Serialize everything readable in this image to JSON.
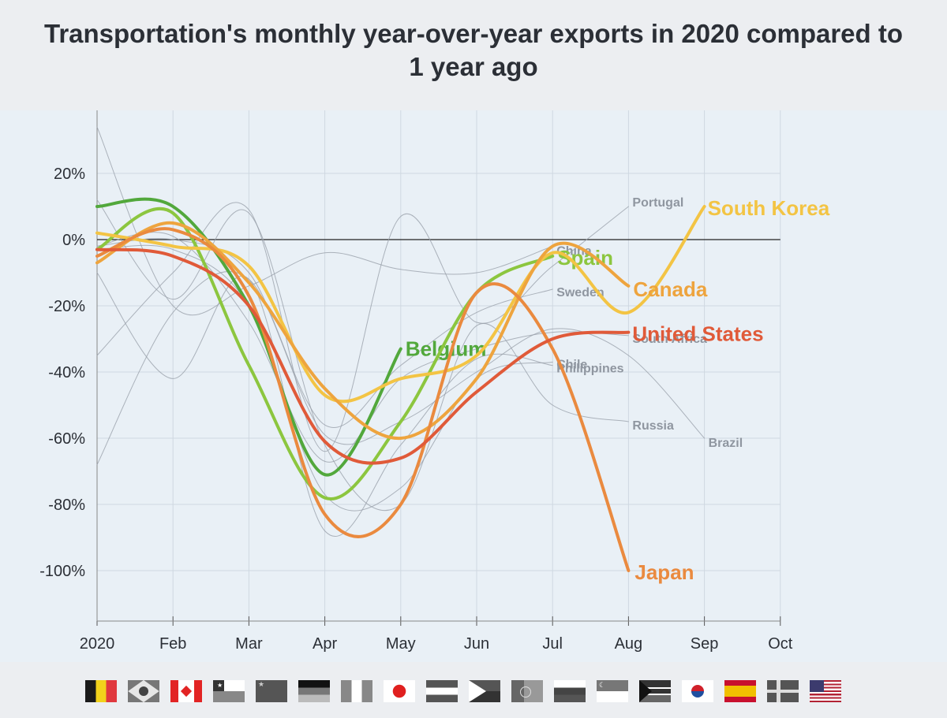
{
  "title_line1": "Transportation's monthly year-over-year exports in 2020 compared to",
  "title_line2": "1 year ago",
  "chart_data": {
    "type": "line",
    "title": "Transportation's monthly year-over-year exports in 2020 compared to 1 year ago",
    "xlabel": "",
    "ylabel": "",
    "x_ticks": [
      "2020",
      "Feb",
      "Mar",
      "Apr",
      "May",
      "Jun",
      "Jul",
      "Aug",
      "Sep",
      "Oct"
    ],
    "y_ticks": [
      20,
      0,
      -20,
      -40,
      -60,
      -80,
      -100
    ],
    "y_tick_labels": [
      "20%",
      "0%",
      "-20%",
      "-40%",
      "-60%",
      "-80%",
      "-100%"
    ],
    "ylim": [
      -115,
      35
    ],
    "grid": true,
    "zero_line": true,
    "series": [
      {
        "name": "Portugal",
        "highlight": false,
        "values": [
          -35,
          -10,
          9,
          -64,
          7,
          -25,
          -8,
          10,
          null,
          null
        ]
      },
      {
        "name": "Brazil",
        "highlight": false,
        "values": [
          -68,
          -22,
          -12,
          -59,
          -55,
          -40,
          -27,
          -35,
          -60,
          null
        ]
      },
      {
        "name": "Russia",
        "highlight": false,
        "values": [
          12,
          -18,
          8,
          -62,
          -80,
          -26,
          -50,
          -55,
          null,
          null
        ]
      },
      {
        "name": "China",
        "highlight": false,
        "values": [
          34,
          -20,
          -14,
          -4,
          -9,
          -10,
          -2,
          null,
          null,
          null
        ]
      },
      {
        "name": "Sweden",
        "highlight": false,
        "values": [
          -2,
          0,
          -10,
          -56,
          -38,
          -22,
          -15,
          null,
          null,
          null
        ]
      },
      {
        "name": "Philippines",
        "highlight": false,
        "values": [
          -10,
          -42,
          -12,
          -88,
          -62,
          -36,
          -38,
          null,
          null,
          null
        ]
      },
      {
        "name": "South Africa",
        "highlight": false,
        "values": [
          -2,
          1,
          -25,
          -67,
          -42,
          -33,
          -28,
          -29,
          null,
          null
        ]
      },
      {
        "name": "Chile",
        "highlight": false,
        "values": [
          -3,
          -3,
          -20,
          -77,
          -75,
          -42,
          -37,
          null,
          null,
          null
        ]
      },
      {
        "name": "Belgium",
        "highlight": true,
        "color": "#52a83c",
        "values": [
          10,
          10,
          -20,
          -71,
          -33,
          null,
          null,
          null,
          null,
          null
        ]
      },
      {
        "name": "Spain",
        "highlight": true,
        "color": "#8cc63f",
        "values": [
          -3,
          8,
          -38,
          -78,
          -55,
          -16,
          -5,
          null,
          null,
          null
        ]
      },
      {
        "name": "South Korea",
        "highlight": true,
        "color": "#f3c444",
        "values": [
          2,
          -2,
          -8,
          -47,
          -42,
          -35,
          -4,
          -22,
          10,
          null
        ]
      },
      {
        "name": "Canada",
        "highlight": true,
        "color": "#eea43e",
        "values": [
          -7,
          5,
          -13,
          -45,
          -60,
          -42,
          -2,
          -14,
          null,
          null
        ]
      },
      {
        "name": "Japan",
        "highlight": true,
        "color": "#ea8a3f",
        "values": [
          -5,
          3,
          -17,
          -83,
          -80,
          -16,
          -33,
          -100,
          null,
          null
        ]
      },
      {
        "name": "United States",
        "highlight": true,
        "color": "#e05a39",
        "values": [
          -3,
          -5,
          -20,
          -61,
          -66,
          -46,
          -30,
          -28,
          null,
          null
        ]
      }
    ],
    "gray_color": "#9aa1ab",
    "flags": [
      {
        "country": "Belgium",
        "colors": [
          "#1a1a1a",
          "#f2d21b",
          "#e0383e"
        ],
        "layout": "vertical"
      },
      {
        "country": "Brazil",
        "colors": [
          "#777777",
          "#e6e6e6",
          "#444444"
        ],
        "layout": "diamond"
      },
      {
        "country": "Canada",
        "colors": [
          "#e22424",
          "#ffffff",
          "#e22424"
        ],
        "layout": "canada"
      },
      {
        "country": "Chile",
        "colors": [
          "#ffffff",
          "#888888",
          "#333333"
        ],
        "layout": "chile"
      },
      {
        "country": "China",
        "colors": [
          "#555555",
          "#cccccc"
        ],
        "layout": "china"
      },
      {
        "country": "Germany",
        "colors": [
          "#111111",
          "#777777",
          "#bbbbbb"
        ],
        "layout": "horizontal"
      },
      {
        "country": "Italy",
        "colors": [
          "#888888",
          "#ffffff",
          "#888888"
        ],
        "layout": "vertical"
      },
      {
        "country": "Japan",
        "colors": [
          "#ffffff",
          "#e0201f"
        ],
        "layout": "japan"
      },
      {
        "country": "Netherlands",
        "colors": [
          "#555555",
          "#ffffff",
          "#555555"
        ],
        "layout": "horizontal"
      },
      {
        "country": "Philippines",
        "colors": [
          "#555555",
          "#ffffff",
          "#333333"
        ],
        "layout": "philippines"
      },
      {
        "country": "Portugal",
        "colors": [
          "#666666",
          "#999999"
        ],
        "layout": "portugal"
      },
      {
        "country": "Russia",
        "colors": [
          "#ffffff",
          "#444444",
          "#555555"
        ],
        "layout": "horizontal"
      },
      {
        "country": "Singapore",
        "colors": [
          "#777777",
          "#ffffff"
        ],
        "layout": "singapore"
      },
      {
        "country": "South Africa",
        "colors": [
          "#333333",
          "#ffffff",
          "#666666"
        ],
        "layout": "southafrica"
      },
      {
        "country": "South Korea",
        "colors": [
          "#ffffff",
          "#d0202a",
          "#1f4fa0"
        ],
        "layout": "korea"
      },
      {
        "country": "Spain",
        "colors": [
          "#c8102e",
          "#f1bf00",
          "#c8102e"
        ],
        "layout": "spain"
      },
      {
        "country": "Sweden",
        "colors": [
          "#555555",
          "#dddddd"
        ],
        "layout": "nordic"
      },
      {
        "country": "United States",
        "colors": [
          "#b22234",
          "#ffffff",
          "#3c3b6e"
        ],
        "layout": "usa"
      }
    ]
  }
}
